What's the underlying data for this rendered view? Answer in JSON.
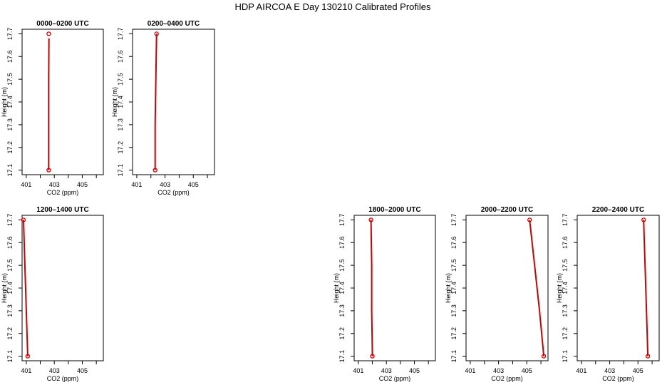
{
  "figure": {
    "title": "HDP AIRCOA E  Day 130210  Calibrated Profiles"
  },
  "chart_data": [
    {
      "type": "line",
      "title": "0000–0200 UTC",
      "xlabel": "CO2 (ppm)",
      "ylabel": "Height (m)",
      "xlim": [
        400.7,
        406.5
      ],
      "ylim": [
        17.08,
        17.72
      ],
      "x_ticks": [
        401,
        403,
        405
      ],
      "x_minor_ticks": [
        402,
        404,
        406
      ],
      "y_ticks": [
        17.1,
        17.2,
        17.3,
        17.4,
        17.5,
        17.6,
        17.7
      ],
      "grid": false,
      "color": "#cc0000",
      "points": [
        {
          "x": 402.6,
          "y": 17.7
        },
        {
          "x": 402.6,
          "y": 17.1
        }
      ],
      "series": [
        {
          "x": [
            402.62,
            402.6,
            402.6,
            402.6
          ],
          "y": [
            17.68,
            17.5,
            17.3,
            17.1
          ]
        }
      ]
    },
    {
      "type": "line",
      "title": "0200–0400 UTC",
      "xlabel": "CO2 (ppm)",
      "ylabel": "Height (m)",
      "xlim": [
        400.7,
        406.5
      ],
      "ylim": [
        17.08,
        17.72
      ],
      "x_ticks": [
        401,
        403,
        405
      ],
      "x_minor_ticks": [
        402,
        404,
        406
      ],
      "y_ticks": [
        17.1,
        17.2,
        17.3,
        17.4,
        17.5,
        17.6,
        17.7
      ],
      "grid": false,
      "color": "#cc0000",
      "points": [
        {
          "x": 402.4,
          "y": 17.7
        },
        {
          "x": 402.3,
          "y": 17.1
        }
      ],
      "series": [
        {
          "x": [
            402.4,
            402.35,
            402.3,
            402.3
          ],
          "y": [
            17.7,
            17.5,
            17.3,
            17.1
          ]
        }
      ]
    },
    {
      "type": "line",
      "title": "1200–1400 UTC",
      "xlabel": "CO2 (ppm)",
      "ylabel": "Height (m)",
      "xlim": [
        400.7,
        406.5
      ],
      "ylim": [
        17.08,
        17.72
      ],
      "x_ticks": [
        401,
        403,
        405
      ],
      "x_minor_ticks": [
        402,
        404,
        406
      ],
      "y_ticks": [
        17.1,
        17.2,
        17.3,
        17.4,
        17.5,
        17.6,
        17.7
      ],
      "grid": false,
      "color": "#cc0000",
      "points": [
        {
          "x": 400.8,
          "y": 17.7
        },
        {
          "x": 401.1,
          "y": 17.1
        }
      ],
      "series": [
        {
          "x": [
            400.8,
            400.9,
            401.0,
            401.1
          ],
          "y": [
            17.7,
            17.5,
            17.3,
            17.1
          ]
        }
      ]
    },
    {
      "type": "line",
      "title": "1800–2000 UTC",
      "xlabel": "CO2 (ppm)",
      "ylabel": "Height (m)",
      "xlim": [
        400.7,
        406.5
      ],
      "ylim": [
        17.08,
        17.72
      ],
      "x_ticks": [
        401,
        403,
        405
      ],
      "x_minor_ticks": [
        402,
        404,
        406
      ],
      "y_ticks": [
        17.1,
        17.2,
        17.3,
        17.4,
        17.5,
        17.6,
        17.7
      ],
      "grid": false,
      "color": "#cc0000",
      "points": [
        {
          "x": 401.9,
          "y": 17.7
        },
        {
          "x": 402.0,
          "y": 17.1
        }
      ],
      "series": [
        {
          "x": [
            401.9,
            401.95,
            401.95,
            402.0
          ],
          "y": [
            17.7,
            17.5,
            17.3,
            17.1
          ]
        }
      ]
    },
    {
      "type": "line",
      "title": "2000–2200 UTC",
      "xlabel": "CO2 (ppm)",
      "ylabel": "Height (m)",
      "xlim": [
        400.7,
        406.5
      ],
      "ylim": [
        17.08,
        17.72
      ],
      "x_ticks": [
        401,
        403,
        405
      ],
      "x_minor_ticks": [
        402,
        404,
        406
      ],
      "y_ticks": [
        17.1,
        17.2,
        17.3,
        17.4,
        17.5,
        17.6,
        17.7
      ],
      "grid": false,
      "color": "#cc0000",
      "points": [
        {
          "x": 405.2,
          "y": 17.7
        },
        {
          "x": 406.2,
          "y": 17.1
        }
      ],
      "series": [
        {
          "x": [
            405.2,
            405.55,
            405.9,
            406.2
          ],
          "y": [
            17.7,
            17.5,
            17.3,
            17.1
          ]
        }
      ]
    },
    {
      "type": "line",
      "title": "2200–2400 UTC",
      "xlabel": "CO2 (ppm)",
      "ylabel": "Height (m)",
      "xlim": [
        400.7,
        406.5
      ],
      "ylim": [
        17.08,
        17.72
      ],
      "x_ticks": [
        401,
        403,
        405
      ],
      "x_minor_ticks": [
        402,
        404,
        406
      ],
      "y_ticks": [
        17.1,
        17.2,
        17.3,
        17.4,
        17.5,
        17.6,
        17.7
      ],
      "grid": false,
      "color": "#cc0000",
      "points": [
        {
          "x": 405.4,
          "y": 17.7
        },
        {
          "x": 405.7,
          "y": 17.1
        }
      ],
      "series": [
        {
          "x": [
            405.4,
            405.5,
            405.6,
            405.7
          ],
          "y": [
            17.7,
            17.5,
            17.3,
            17.1
          ]
        }
      ]
    }
  ]
}
